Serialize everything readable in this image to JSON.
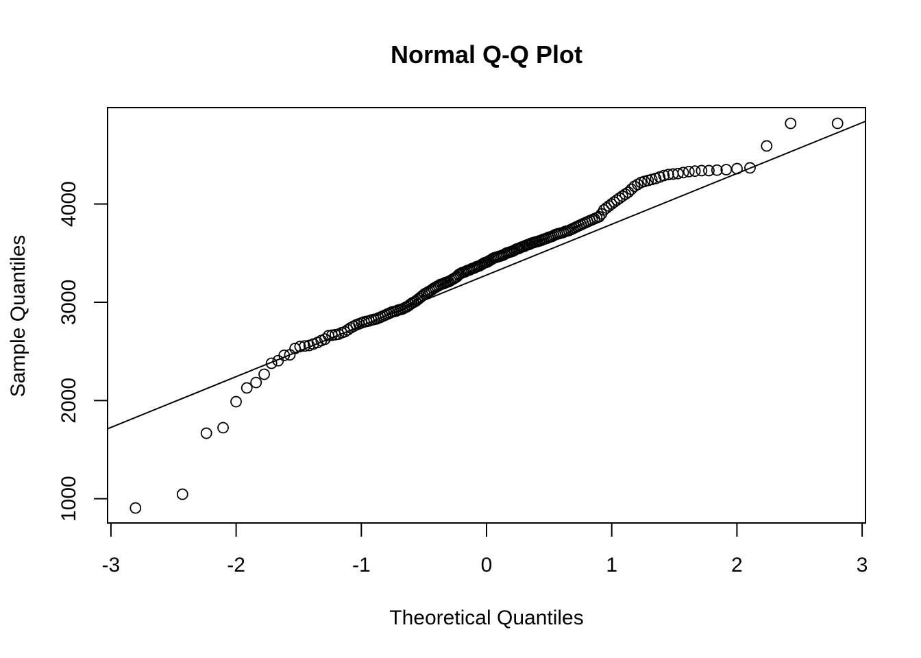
{
  "chart_data": {
    "type": "scatter",
    "title": "Normal Q-Q Plot",
    "xlabel": "Theoretical Quantiles",
    "ylabel": "Sample Quantiles",
    "xlim": [
      -3.03,
      3.03
    ],
    "ylim": [
      760,
      4990
    ],
    "x_ticks": [
      -3,
      -2,
      -1,
      0,
      1,
      2,
      3
    ],
    "x_tick_labels": [
      "-3",
      "-2",
      "-1",
      "0",
      "1",
      "2",
      "3"
    ],
    "y_ticks": [
      1000,
      2000,
      3000,
      4000
    ],
    "y_tick_labels": [
      "1000",
      "2000",
      "3000",
      "4000"
    ],
    "grid": false,
    "legend": null,
    "n": 200,
    "reference_line": {
      "intercept": 3277,
      "slope": 517
    },
    "sample_values": [
      906,
      1046,
      1667,
      1723,
      1988,
      2128,
      2183,
      2267,
      2379,
      2405,
      2460,
      2465,
      2530,
      2550,
      2555,
      2560,
      2575,
      2590,
      2610,
      2625,
      2660,
      2665,
      2670,
      2675,
      2690,
      2700,
      2720,
      2740,
      2755,
      2770,
      2780,
      2790,
      2800,
      2805,
      2810,
      2820,
      2825,
      2830,
      2840,
      2850,
      2860,
      2870,
      2880,
      2890,
      2900,
      2905,
      2910,
      2920,
      2925,
      2930,
      2940,
      2950,
      2960,
      2975,
      2990,
      3000,
      3010,
      3025,
      3040,
      3055,
      3070,
      3085,
      3095,
      3105,
      3115,
      3125,
      3140,
      3150,
      3160,
      3170,
      3180,
      3185,
      3190,
      3200,
      3205,
      3210,
      3220,
      3230,
      3240,
      3250,
      3260,
      3280,
      3290,
      3300,
      3305,
      3310,
      3320,
      3325,
      3330,
      3340,
      3345,
      3350,
      3360,
      3365,
      3370,
      3380,
      3390,
      3400,
      3405,
      3410,
      3420,
      3430,
      3440,
      3450,
      3455,
      3460,
      3465,
      3470,
      3475,
      3480,
      3490,
      3500,
      3505,
      3510,
      3515,
      3520,
      3530,
      3540,
      3545,
      3550,
      3560,
      3565,
      3570,
      3580,
      3585,
      3590,
      3600,
      3605,
      3610,
      3615,
      3620,
      3625,
      3630,
      3640,
      3645,
      3650,
      3660,
      3665,
      3670,
      3680,
      3690,
      3695,
      3700,
      3705,
      3710,
      3720,
      3725,
      3730,
      3740,
      3750,
      3760,
      3770,
      3780,
      3790,
      3800,
      3810,
      3820,
      3830,
      3840,
      3850,
      3860,
      3870,
      3900,
      3940,
      3960,
      3980,
      4000,
      4020,
      4040,
      4060,
      4080,
      4100,
      4120,
      4150,
      4180,
      4200,
      4220,
      4230,
      4240,
      4250,
      4260,
      4275,
      4290,
      4300,
      4305,
      4310,
      4320,
      4330,
      4335,
      4340,
      4340,
      4345,
      4350,
      4360,
      4368,
      4591,
      4821,
      4821
    ]
  },
  "labels": {
    "title": "Normal Q-Q Plot",
    "xlabel": "Theoretical Quantiles",
    "ylabel": "Sample Quantiles"
  }
}
